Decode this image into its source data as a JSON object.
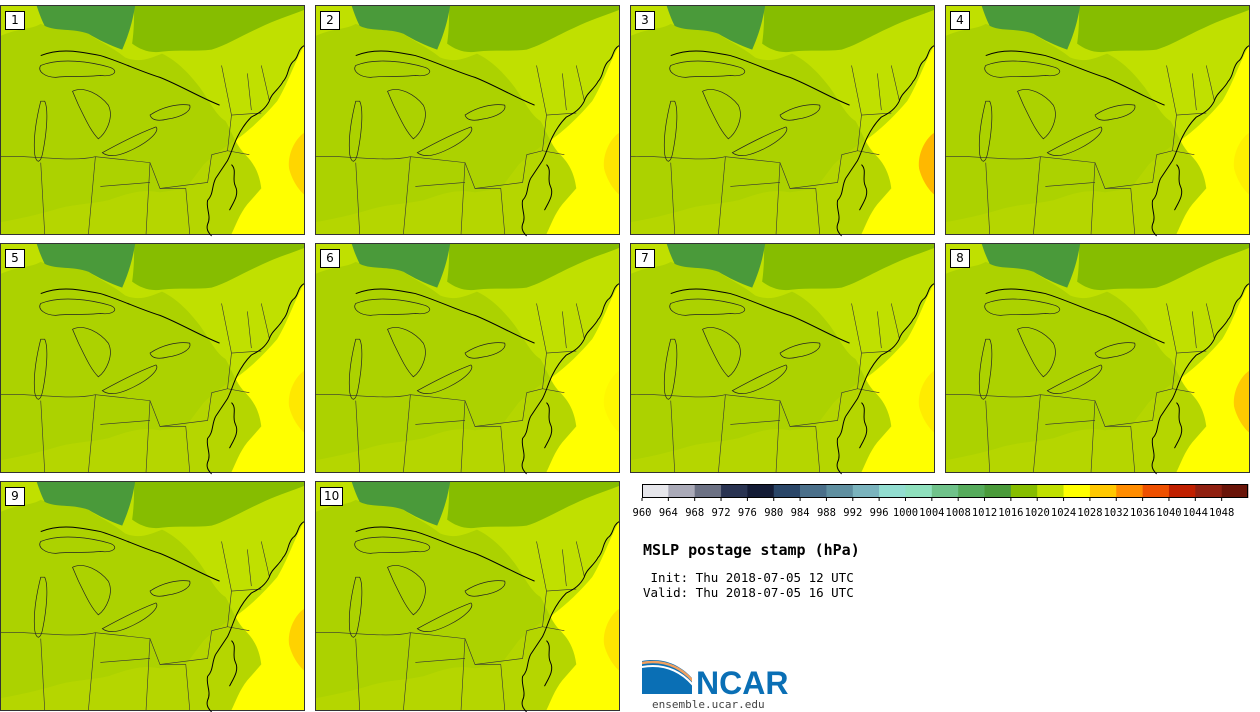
{
  "figure": {
    "title": "MSLP postage stamp (hPa)",
    "init": " Init: Thu 2018-07-05 12 UTC",
    "valid": "Valid: Thu 2018-07-05 16 UTC"
  },
  "members": [
    {
      "label": "1",
      "ne_high": "0.55"
    },
    {
      "label": "2",
      "ne_high": "0.35"
    },
    {
      "label": "3",
      "ne_high": "0.95"
    },
    {
      "label": "4",
      "ne_high": "0.2"
    },
    {
      "label": "5",
      "ne_high": "0.3"
    },
    {
      "label": "6",
      "ne_high": "0.1"
    },
    {
      "label": "7",
      "ne_high": "0.25"
    },
    {
      "label": "8",
      "ne_high": "0.7"
    },
    {
      "label": "9",
      "ne_high": "0.6"
    },
    {
      "label": "10",
      "ne_high": "0.35"
    }
  ],
  "colorbar": {
    "labels": [
      "960",
      "964",
      "968",
      "972",
      "976",
      "980",
      "984",
      "988",
      "992",
      "996",
      "1000",
      "1004",
      "1008",
      "1012",
      "1016",
      "1020",
      "1024",
      "1028",
      "1032",
      "1036",
      "1040",
      "1044",
      "1048"
    ],
    "colors": [
      "#e6e6eb",
      "#aaaab8",
      "#6c7184",
      "#2a3452",
      "#141c36",
      "#2a4668",
      "#4a6f8a",
      "#5f8fa0",
      "#7ab3bd",
      "#92ddd0",
      "#8fe0bd",
      "#6fc28a",
      "#56ab5c",
      "#4a9a3a",
      "#86bd00",
      "#c0e000",
      "#ffff00",
      "#ffc800",
      "#ff8c00",
      "#ee5000",
      "#c02000",
      "#902010",
      "#6a1408"
    ]
  },
  "logo": {
    "text": "NCAR",
    "url": "ensemble.ucar.edu",
    "color": "#0a6fb5"
  }
}
